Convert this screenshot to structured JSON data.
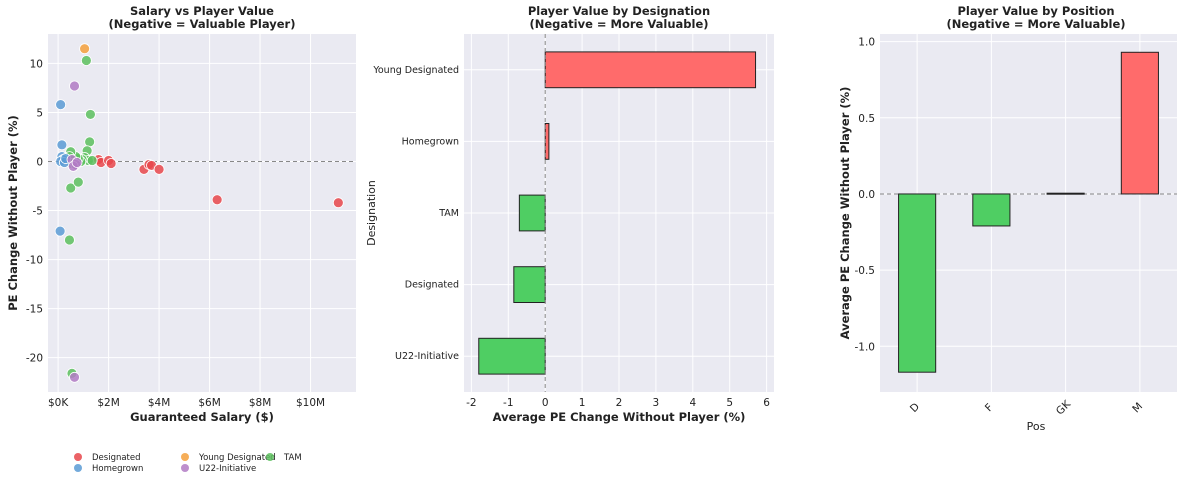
{
  "chart_data": [
    {
      "type": "scatter",
      "title": "Salary vs Player Value",
      "subtitle": "(Negative = Valuable Player)",
      "xlabel": "Guaranteed Salary ($)",
      "ylabel": "PE Change Without Player (%)",
      "xlim": [
        -400000,
        11800000
      ],
      "ylim": [
        -23.5,
        13
      ],
      "xticks": [
        {
          "v": 0,
          "label": "$0K"
        },
        {
          "v": 2000000,
          "label": "$2M"
        },
        {
          "v": 4000000,
          "label": "$4M"
        },
        {
          "v": 6000000,
          "label": "$6M"
        },
        {
          "v": 8000000,
          "label": "$8M"
        },
        {
          "v": 10000000,
          "label": "$10M"
        }
      ],
      "yticks": [
        10,
        5,
        0,
        -5,
        -10,
        -15,
        -20
      ],
      "zero_line": 0,
      "grid": true,
      "legend_position": "bottom",
      "series": [
        {
          "name": "Designated",
          "color": "#e8474b",
          "points": [
            [
              1600000,
              0.2
            ],
            [
              1700000,
              -0.1
            ],
            [
              2000000,
              0.1
            ],
            [
              2100000,
              -0.2
            ],
            [
              3400000,
              -0.8
            ],
            [
              3600000,
              -0.3
            ],
            [
              3700000,
              -0.4
            ],
            [
              4000000,
              -0.8
            ],
            [
              6300000,
              -3.9
            ],
            [
              11100000,
              -4.2
            ]
          ]
        },
        {
          "name": "Young Designated",
          "color": "#f5a03c",
          "points": [
            [
              1050000,
              11.5
            ]
          ]
        },
        {
          "name": "TAM",
          "color": "#5cbf5e",
          "points": [
            [
              1120000,
              10.3
            ],
            [
              1280000,
              4.8
            ],
            [
              1250000,
              2.0
            ],
            [
              1150000,
              1.1
            ],
            [
              1050000,
              0.4
            ],
            [
              1200000,
              0.1
            ],
            [
              1350000,
              0.1
            ],
            [
              950000,
              0.2
            ],
            [
              900000,
              0.0
            ],
            [
              800000,
              0.3
            ],
            [
              700000,
              0.5
            ],
            [
              500000,
              1.0
            ],
            [
              450000,
              0.5
            ],
            [
              550000,
              -0.2
            ],
            [
              500000,
              -2.7
            ],
            [
              800000,
              -2.1
            ],
            [
              450000,
              -8.0
            ],
            [
              550000,
              -21.6
            ]
          ]
        },
        {
          "name": "Homegrown",
          "color": "#5b9bd5",
          "points": [
            [
              100000,
              5.8
            ],
            [
              150000,
              1.7
            ],
            [
              150000,
              0.5
            ],
            [
              200000,
              0.2
            ],
            [
              100000,
              0.0
            ],
            [
              250000,
              -0.1
            ],
            [
              300000,
              0.3
            ],
            [
              80000,
              -7.1
            ]
          ]
        },
        {
          "name": "U22-Initiative",
          "color": "#b27bc4",
          "points": [
            [
              650000,
              7.7
            ],
            [
              550000,
              0.2
            ],
            [
              700000,
              -0.3
            ],
            [
              600000,
              -0.5
            ],
            [
              750000,
              -0.1
            ],
            [
              650000,
              -22.0
            ]
          ]
        }
      ]
    },
    {
      "type": "bar",
      "orientation": "horizontal",
      "title": "Player Value by Designation",
      "subtitle": "(Negative = More Valuable)",
      "xlabel": "Average PE Change Without Player (%)",
      "ylabel": "Designation",
      "xlim": [
        -2.2,
        6.2
      ],
      "xticks": [
        -2,
        -1,
        0,
        1,
        2,
        3,
        4,
        5,
        6
      ],
      "categories": [
        "Young Designated",
        "Homegrown",
        "TAM",
        "Designated",
        "U22-Initiative"
      ],
      "values": [
        5.7,
        0.1,
        -0.7,
        -0.85,
        -1.8
      ],
      "positive_color": "#ff6b6b",
      "negative_color": "#4fce63"
    },
    {
      "type": "bar",
      "title": "Player Value by Position",
      "subtitle": "(Negative = More Valuable)",
      "xlabel": "Pos",
      "ylabel": "Average PE Change Without Player (%)",
      "ylim": [
        -1.3,
        1.05
      ],
      "yticks": [
        1.0,
        0.5,
        0.0,
        -0.5,
        -1.0
      ],
      "categories": [
        "D",
        "F",
        "GK",
        "M"
      ],
      "values": [
        -1.17,
        -0.21,
        0.005,
        0.93
      ],
      "positive_color": "#ff6b6b",
      "negative_color": "#4fce63"
    }
  ]
}
